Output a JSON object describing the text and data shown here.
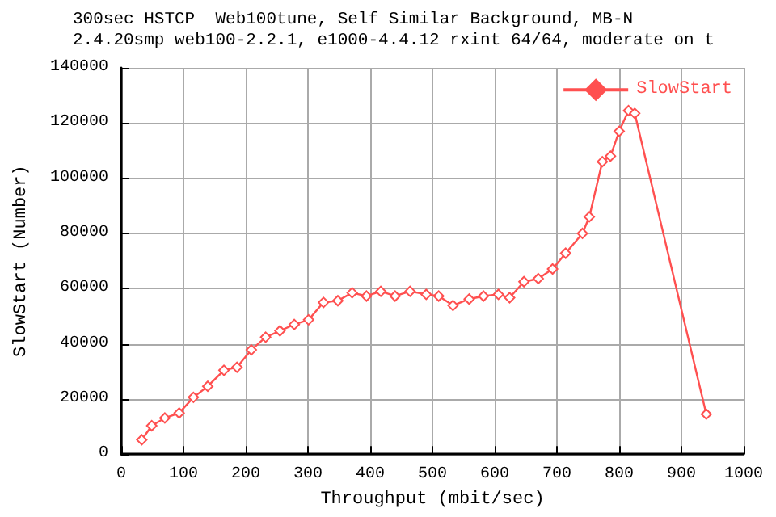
{
  "chart_data": {
    "type": "line",
    "title": "300sec HSTCP  Web100tune, Self Similar Background, MB-N",
    "subtitle": "2.4.20smp web100-2.2.1, e1000-4.4.12 rxint 64/64, moderate on t",
    "xlabel": "Throughput (mbit/sec)",
    "ylabel": "SlowStart (Number)",
    "series": [
      {
        "name": "SlowStart",
        "color": "#ff5050",
        "x": [
          33,
          49,
          70,
          93,
          116,
          139,
          165,
          186,
          209,
          232,
          255,
          278,
          301,
          325,
          348,
          371,
          394,
          417,
          440,
          464,
          490,
          510,
          533,
          559,
          582,
          606,
          624,
          647,
          670,
          693,
          714,
          741,
          752,
          773,
          786,
          800,
          815,
          825,
          940
        ],
        "values": [
          5200,
          10300,
          13100,
          14900,
          20600,
          24600,
          30400,
          31500,
          37800,
          42400,
          44700,
          47000,
          48700,
          55000,
          55600,
          58500,
          57300,
          59000,
          57300,
          59000,
          57900,
          57300,
          53900,
          56200,
          57300,
          57900,
          56700,
          62500,
          63600,
          67100,
          72800,
          80000,
          86000,
          106000,
          108000,
          117000,
          124500,
          123500,
          14500
        ]
      }
    ],
    "xlim": [
      0,
      1000
    ],
    "xticks": [
      0,
      100,
      200,
      300,
      400,
      500,
      600,
      700,
      800,
      900,
      1000
    ],
    "ylim": [
      0,
      140000
    ],
    "yticks": [
      0,
      20000,
      40000,
      60000,
      80000,
      100000,
      120000,
      140000
    ],
    "grid": true,
    "legend": "top right",
    "marker": "diamond",
    "line_style": "solid"
  }
}
